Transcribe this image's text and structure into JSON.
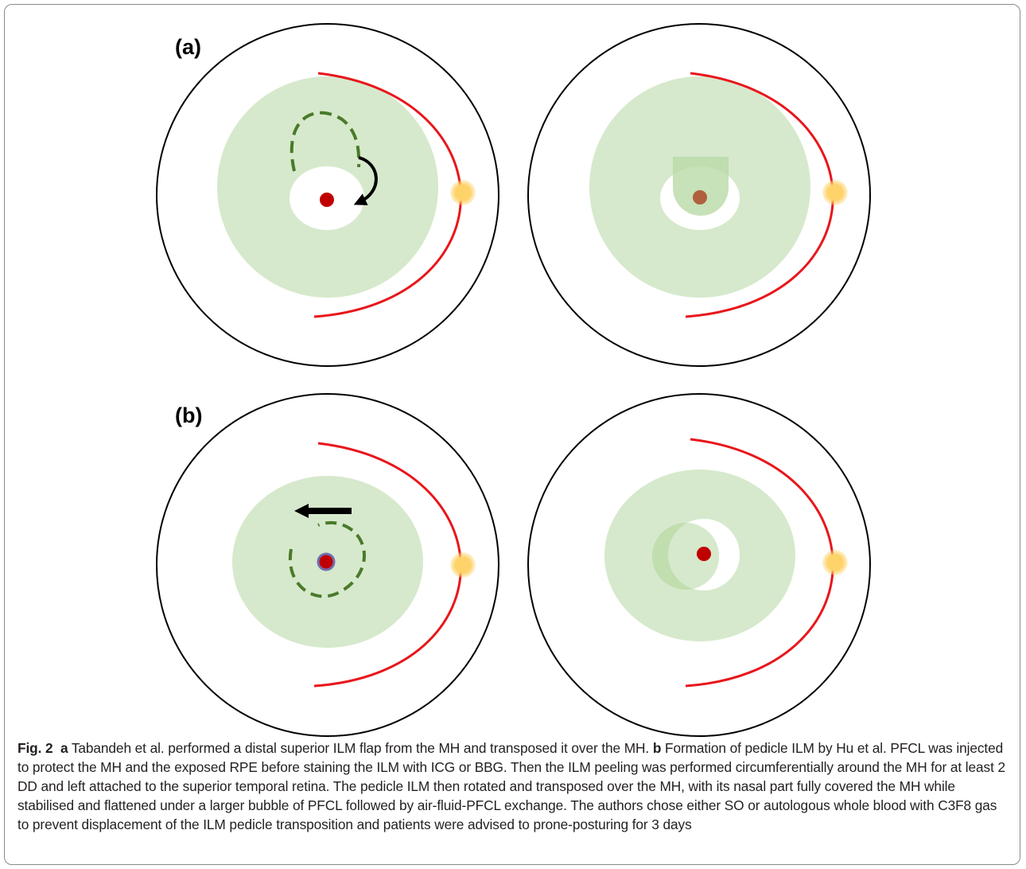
{
  "figure": {
    "panel_a_label": "(a)",
    "panel_b_label": "(b)",
    "colors": {
      "eye_outline": "#000000",
      "retina_shade": "#d6e9cc",
      "arc": "#e8161b",
      "optic_disc": "#fcd16b",
      "macular_hole": "#c00000",
      "covered_hole": "#b0603e",
      "flap_dash": "#4a7a2b",
      "arrow": "#000000",
      "pfcl_ring": "#6f6fb0"
    }
  },
  "caption": {
    "fig_label": "Fig. 2",
    "a_marker": "a",
    "a_text": " Tabandeh et al. performed a distal superior ILM flap from the MH and transposed it over the MH. ",
    "b_marker": "b",
    "b_text": " Formation of pedicle ILM by Hu et al. PFCL was injected to protect the MH and the exposed RPE before staining the ILM with ICG or BBG. Then the ILM peeling was performed circumferentially around the MH for at least 2 DD and left attached to the superior temporal retina. The pedicle ILM then rotated and transposed over the MH, with its nasal part fully covered the MH while stabilised and flattened under a larger bubble of PFCL followed by air-fluid-PFCL exchange. The authors chose either SO or autologous whole blood with C3F8 gas to prevent displacement of the ILM pedicle transposition and patients were advised to prone-posturing for 3 days"
  }
}
